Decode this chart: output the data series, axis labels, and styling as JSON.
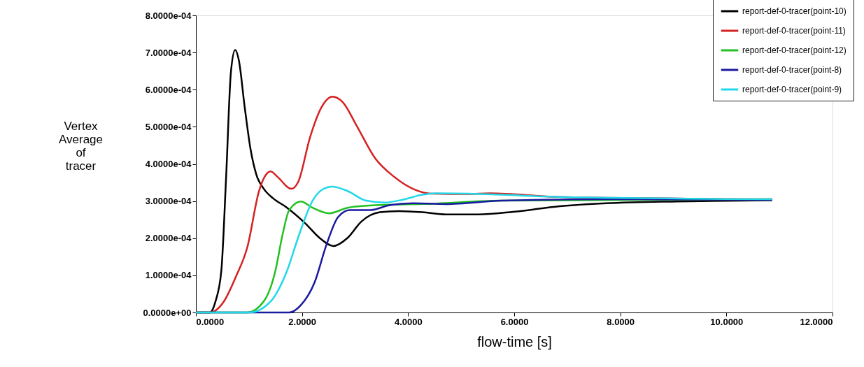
{
  "chart_data": {
    "type": "line",
    "xlabel": "flow-time [s]",
    "ylabel": "Vertex Average of tracer",
    "xlim": [
      0,
      12
    ],
    "ylim": [
      0,
      0.0008
    ],
    "xticks": [
      {
        "value": 0,
        "label": "0.0000"
      },
      {
        "value": 2,
        "label": "2.0000"
      },
      {
        "value": 4,
        "label": "4.0000"
      },
      {
        "value": 6,
        "label": "6.0000"
      },
      {
        "value": 8,
        "label": "8.0000"
      },
      {
        "value": 10,
        "label": "10.0000"
      },
      {
        "value": 12,
        "label": "12.0000"
      }
    ],
    "yticks": [
      {
        "value": 0,
        "label": "0.0000e+00"
      },
      {
        "value": 0.0001,
        "label": "1.0000e-04"
      },
      {
        "value": 0.0002,
        "label": "2.0000e-04"
      },
      {
        "value": 0.0003,
        "label": "3.0000e-04"
      },
      {
        "value": 0.0004,
        "label": "4.0000e-04"
      },
      {
        "value": 0.0005,
        "label": "5.0000e-04"
      },
      {
        "value": 0.0006,
        "label": "6.0000e-04"
      },
      {
        "value": 0.0007,
        "label": "7.0000e-04"
      },
      {
        "value": 0.0008,
        "label": "8.0000e-04"
      }
    ],
    "grid": false,
    "legend": "top right",
    "marker": "none",
    "line_style": "solid",
    "series": [
      {
        "name": "report-def-0-tracer(point-10)",
        "color": "#000000",
        "x": [
          0,
          0.26,
          0.37,
          0.48,
          0.57,
          0.66,
          0.74,
          0.81,
          0.92,
          1.03,
          1.14,
          1.28,
          1.45,
          1.71,
          2.07,
          2.33,
          2.59,
          2.86,
          3.12,
          3.47,
          3.83,
          4.27,
          4.71,
          5.32,
          5.98,
          6.86,
          7.74,
          9.06,
          10.86
        ],
        "values": [
          0,
          0,
          3e-05,
          0.000113,
          0.000365,
          0.000647,
          0.000707,
          0.000679,
          0.000553,
          0.00044,
          0.000371,
          0.000333,
          0.000308,
          0.000283,
          0.000239,
          0.000201,
          0.000179,
          0.000201,
          0.000245,
          0.00027,
          0.000273,
          0.00027,
          0.000264,
          0.000264,
          0.000271,
          0.000286,
          0.000294,
          0.000299,
          0.000302
        ]
      },
      {
        "name": "report-def-0-tracer(point-11)",
        "color": "#d42222",
        "x": [
          0,
          0.26,
          0.53,
          0.75,
          0.97,
          1.19,
          1.32,
          1.41,
          1.54,
          1.8,
          1.93,
          2.15,
          2.37,
          2.57,
          2.77,
          3.03,
          3.38,
          3.74,
          4.09,
          4.44,
          5.14,
          5.54,
          6.86,
          10.86
        ],
        "values": [
          0,
          0,
          3e-05,
          9.5e-05,
          0.000176,
          0.000327,
          0.000371,
          0.00038,
          0.000365,
          0.000333,
          0.000352,
          0.000471,
          0.000553,
          0.000581,
          0.000566,
          0.000503,
          0.000415,
          0.000365,
          0.000333,
          0.00032,
          0.000319,
          0.000321,
          0.000311,
          0.000305
        ]
      },
      {
        "name": "report-def-0-tracer(point-12)",
        "color": "#22c022",
        "x": [
          0,
          0.97,
          1.28,
          1.5,
          1.63,
          1.76,
          1.98,
          2.2,
          2.51,
          2.86,
          3.38,
          4.27,
          5.76,
          10.86
        ],
        "values": [
          0,
          0,
          3e-05,
          0.000113,
          0.000207,
          0.000276,
          0.000299,
          0.000282,
          0.000267,
          0.000282,
          0.000289,
          0.000292,
          0.000301,
          0.000305
        ]
      },
      {
        "name": "report-def-0-tracer(point-8)",
        "color": "#1a1aa0",
        "x": [
          0,
          1.76,
          1.98,
          2.24,
          2.46,
          2.68,
          2.9,
          3.3,
          3.65,
          4.09,
          4.71,
          5.76,
          7.74,
          10.86
        ],
        "values": [
          0,
          0,
          2e-05,
          8.2e-05,
          0.000182,
          0.000257,
          0.000276,
          0.000276,
          0.000289,
          0.000294,
          0.000292,
          0.000301,
          0.000305,
          0.000303
        ]
      },
      {
        "name": "report-def-0-tracer(point-9)",
        "color": "#22d8e8",
        "x": [
          0,
          1.01,
          1.41,
          1.72,
          1.94,
          2.2,
          2.37,
          2.57,
          2.86,
          3.21,
          3.56,
          3.91,
          4.27,
          4.53,
          5.14,
          5.76,
          6.86,
          10.86
        ],
        "values": [
          0,
          0,
          3e-05,
          0.000113,
          0.000207,
          0.000301,
          0.00033,
          0.000339,
          0.000327,
          0.000301,
          0.000296,
          0.000304,
          0.000317,
          0.000321,
          0.00032,
          0.000317,
          0.000311,
          0.000305
        ]
      }
    ]
  }
}
